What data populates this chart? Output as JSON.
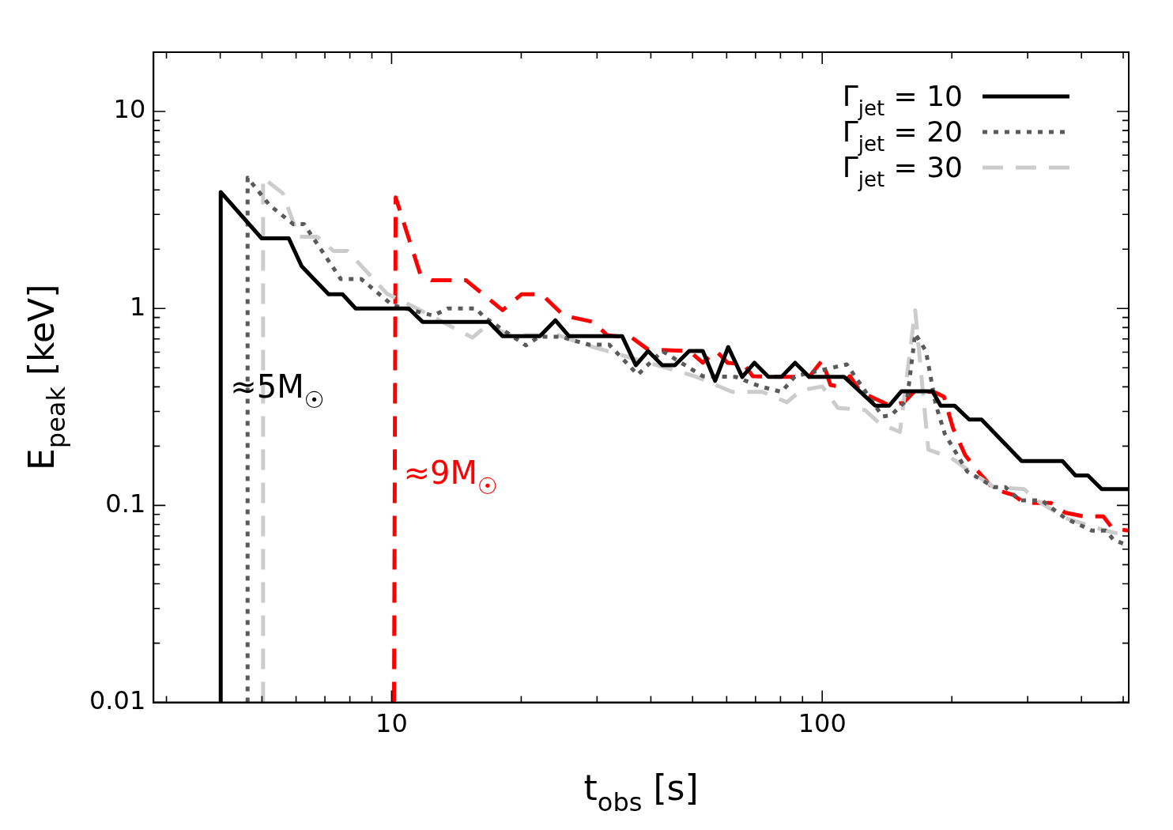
{
  "chart_data": {
    "type": "line",
    "xlabel": "t$_{obs}$ [s]",
    "ylabel": "E$_{peak}$ [keV]",
    "log": "xy",
    "legend": "top right",
    "marker": "none",
    "xlim": [
      2.8,
      515
    ],
    "ylim": [
      0.01,
      20
    ],
    "xticks": [
      {
        "value": 3,
        "label": null
      },
      {
        "value": 4,
        "label": null
      },
      {
        "value": 5,
        "label": null
      },
      {
        "value": 6,
        "label": null
      },
      {
        "value": 7,
        "label": null
      },
      {
        "value": 8,
        "label": null
      },
      {
        "value": 9,
        "label": null
      },
      10,
      {
        "value": 20,
        "label": null
      },
      {
        "value": 30,
        "label": null
      },
      {
        "value": 40,
        "label": null
      },
      {
        "value": 50,
        "label": null
      },
      {
        "value": 60,
        "label": null
      },
      {
        "value": 70,
        "label": null
      },
      {
        "value": 80,
        "label": null
      },
      {
        "value": 90,
        "label": null
      },
      100,
      {
        "value": 200,
        "label": null
      },
      {
        "value": 300,
        "label": null
      },
      {
        "value": 400,
        "label": null
      },
      {
        "value": 500,
        "label": null
      }
    ],
    "yticks": [
      0.01,
      {
        "value": 0.02,
        "label": null
      },
      {
        "value": 0.03,
        "label": null
      },
      {
        "value": 0.04,
        "label": null
      },
      {
        "value": 0.05,
        "label": null
      },
      {
        "value": 0.06,
        "label": null
      },
      {
        "value": 0.07,
        "label": null
      },
      {
        "value": 0.08,
        "label": null
      },
      {
        "value": 0.09,
        "label": null
      },
      0.1,
      {
        "value": 0.2,
        "label": null
      },
      {
        "value": 0.3,
        "label": null
      },
      {
        "value": 0.4,
        "label": null
      },
      {
        "value": 0.5,
        "label": null
      },
      {
        "value": 0.6,
        "label": null
      },
      {
        "value": 0.7,
        "label": null
      },
      {
        "value": 0.8,
        "label": null
      },
      {
        "value": 0.9,
        "label": null
      },
      1,
      {
        "value": 2,
        "label": null
      },
      {
        "value": 3,
        "label": null
      },
      {
        "value": 4,
        "label": null
      },
      {
        "value": 5,
        "label": null
      },
      {
        "value": 6,
        "label": null
      },
      {
        "value": 7,
        "label": null
      },
      {
        "value": 8,
        "label": null
      },
      {
        "value": 9,
        "label": null
      },
      10
    ],
    "series": [
      {
        "name": "Γ$_{jet}$ = 10",
        "color": "#000000",
        "line_style": "solid",
        "x": [
          4.01,
          4.01,
          4.99,
          5.77,
          6.18,
          7.14,
          7.69,
          8.25,
          10.96,
          11.8,
          16.8,
          18.1,
          22.1,
          24.0,
          25.8,
          34.3,
          36.9,
          39.4,
          42.5,
          45.5,
          49.1,
          52.8,
          56.4,
          60.5,
          65.2,
          69.6,
          75.0,
          80.4,
          86.5,
          93.3,
          112.5,
          132.8,
          143.1,
          152.8,
          180.3,
          188.4,
          202.9,
          219.5,
          234.4,
          290.4,
          361.3,
          387.3,
          413.9,
          445.7,
          515
        ],
        "values": [
          0.01,
          3.9,
          2.27,
          2.27,
          1.64,
          1.18,
          1.18,
          1.0,
          1.0,
          0.855,
          0.855,
          0.724,
          0.724,
          0.871,
          0.724,
          0.724,
          0.515,
          0.608,
          0.515,
          0.515,
          0.608,
          0.608,
          0.429,
          0.637,
          0.449,
          0.53,
          0.449,
          0.449,
          0.53,
          0.449,
          0.449,
          0.321,
          0.321,
          0.38,
          0.38,
          0.321,
          0.321,
          0.273,
          0.273,
          0.168,
          0.168,
          0.142,
          0.142,
          0.121,
          0.121
        ]
      },
      {
        "name": "Γ$_{jet}$ = 20",
        "color": "#5a5a5a",
        "line_style": "dotted",
        "x": [
          4.63,
          4.63,
          5.21,
          5.91,
          6.26,
          7.62,
          8.5,
          10.04,
          12.5,
          13.5,
          15.7,
          16.4,
          20.5,
          22.0,
          24.7,
          28.7,
          32.0,
          37.3,
          42.5,
          52.8,
          63.0,
          71.8,
          80.4,
          86.5,
          114.0,
          138.1,
          144.3,
          157.4,
          164.4,
          174.1,
          183.5,
          192.6,
          216.9,
          250.3,
          266.1,
          287.8,
          323.7,
          366.2,
          423.0,
          455.3,
          475.5,
          515
        ],
        "values": [
          0.01,
          4.61,
          3.34,
          2.68,
          2.68,
          1.41,
          1.41,
          1.04,
          0.92,
          1.0,
          1.0,
          0.904,
          0.649,
          0.718,
          0.718,
          0.655,
          0.655,
          0.461,
          0.608,
          0.453,
          0.449,
          0.402,
          0.377,
          0.453,
          0.52,
          0.283,
          0.286,
          0.344,
          0.745,
          0.608,
          0.325,
          0.231,
          0.149,
          0.124,
          0.124,
          0.106,
          0.106,
          0.0863,
          0.0745,
          0.0745,
          0.0667,
          0.0625
        ]
      },
      {
        "name": "Γ$_{jet}$ = 30",
        "color": "#cccccc",
        "line_style": "dashed",
        "x": [
          5.03,
          5.03,
          5.59,
          6.08,
          6.72,
          7.33,
          7.9,
          9.75,
          11.35,
          15.4,
          16.7,
          18.8,
          24.4,
          29.4,
          35.7,
          50.6,
          61.8,
          72.6,
          82.8,
          89.3,
          100,
          108.7,
          125.6,
          135.9,
          151.5,
          164.4,
          176.4,
          198.8,
          213.9,
          250.3,
          294.4,
          311.4,
          366.2,
          455.3,
          515
        ],
        "values": [
          0.01,
          4.61,
          3.84,
          2.31,
          2.31,
          1.96,
          1.96,
          1.19,
          1.01,
          0.711,
          0.824,
          0.731,
          0.731,
          0.637,
          0.565,
          0.453,
          0.377,
          0.377,
          0.334,
          0.384,
          0.402,
          0.313,
          0.305,
          0.261,
          0.236,
          0.98,
          0.192,
          0.175,
          0.156,
          0.124,
          0.121,
          0.108,
          0.0863,
          0.0745,
          0.0698
        ]
      },
      {
        "color": "#ff0000",
        "line_style": "dashed",
        "x": [
          10.13,
          10.22,
          11.65,
          12.39,
          14.89,
          18.1,
          20.03,
          22.3,
          25.1,
          29.3,
          31.7,
          36.1,
          39.4,
          49.1,
          52.8,
          56.7,
          60.3,
          65.8,
          69.0,
          82.8,
          93.3,
          100,
          104.5,
          109.1,
          116.0,
          122.8,
          144.3,
          154.8,
          163.2,
          181.9,
          191.8,
          201.2,
          214.8,
          229.3,
          250.3,
          277.9,
          294.4,
          339.8,
          366.2,
          404.6,
          449.6,
          471.8,
          515
        ],
        "values": [
          0.01,
          3.66,
          1.5,
          1.39,
          1.39,
          0.98,
          1.18,
          1.18,
          0.92,
          0.855,
          0.731,
          0.711,
          0.619,
          0.608,
          0.53,
          0.608,
          0.53,
          0.52,
          0.453,
          0.449,
          0.449,
          0.545,
          0.409,
          0.402,
          0.453,
          0.377,
          0.32,
          0.334,
          0.377,
          0.377,
          0.356,
          0.247,
          0.18,
          0.15,
          0.121,
          0.113,
          0.103,
          0.103,
          0.092,
          0.088,
          0.088,
          0.0766,
          0.0745
        ]
      }
    ],
    "annotations": [
      {
        "text": "≈5M$_{☉}$",
        "x": 4.01,
        "y": 0.4
      },
      {
        "text": "≈9M$_{☉}$",
        "x": 10.13,
        "y": 0.146
      }
    ]
  }
}
